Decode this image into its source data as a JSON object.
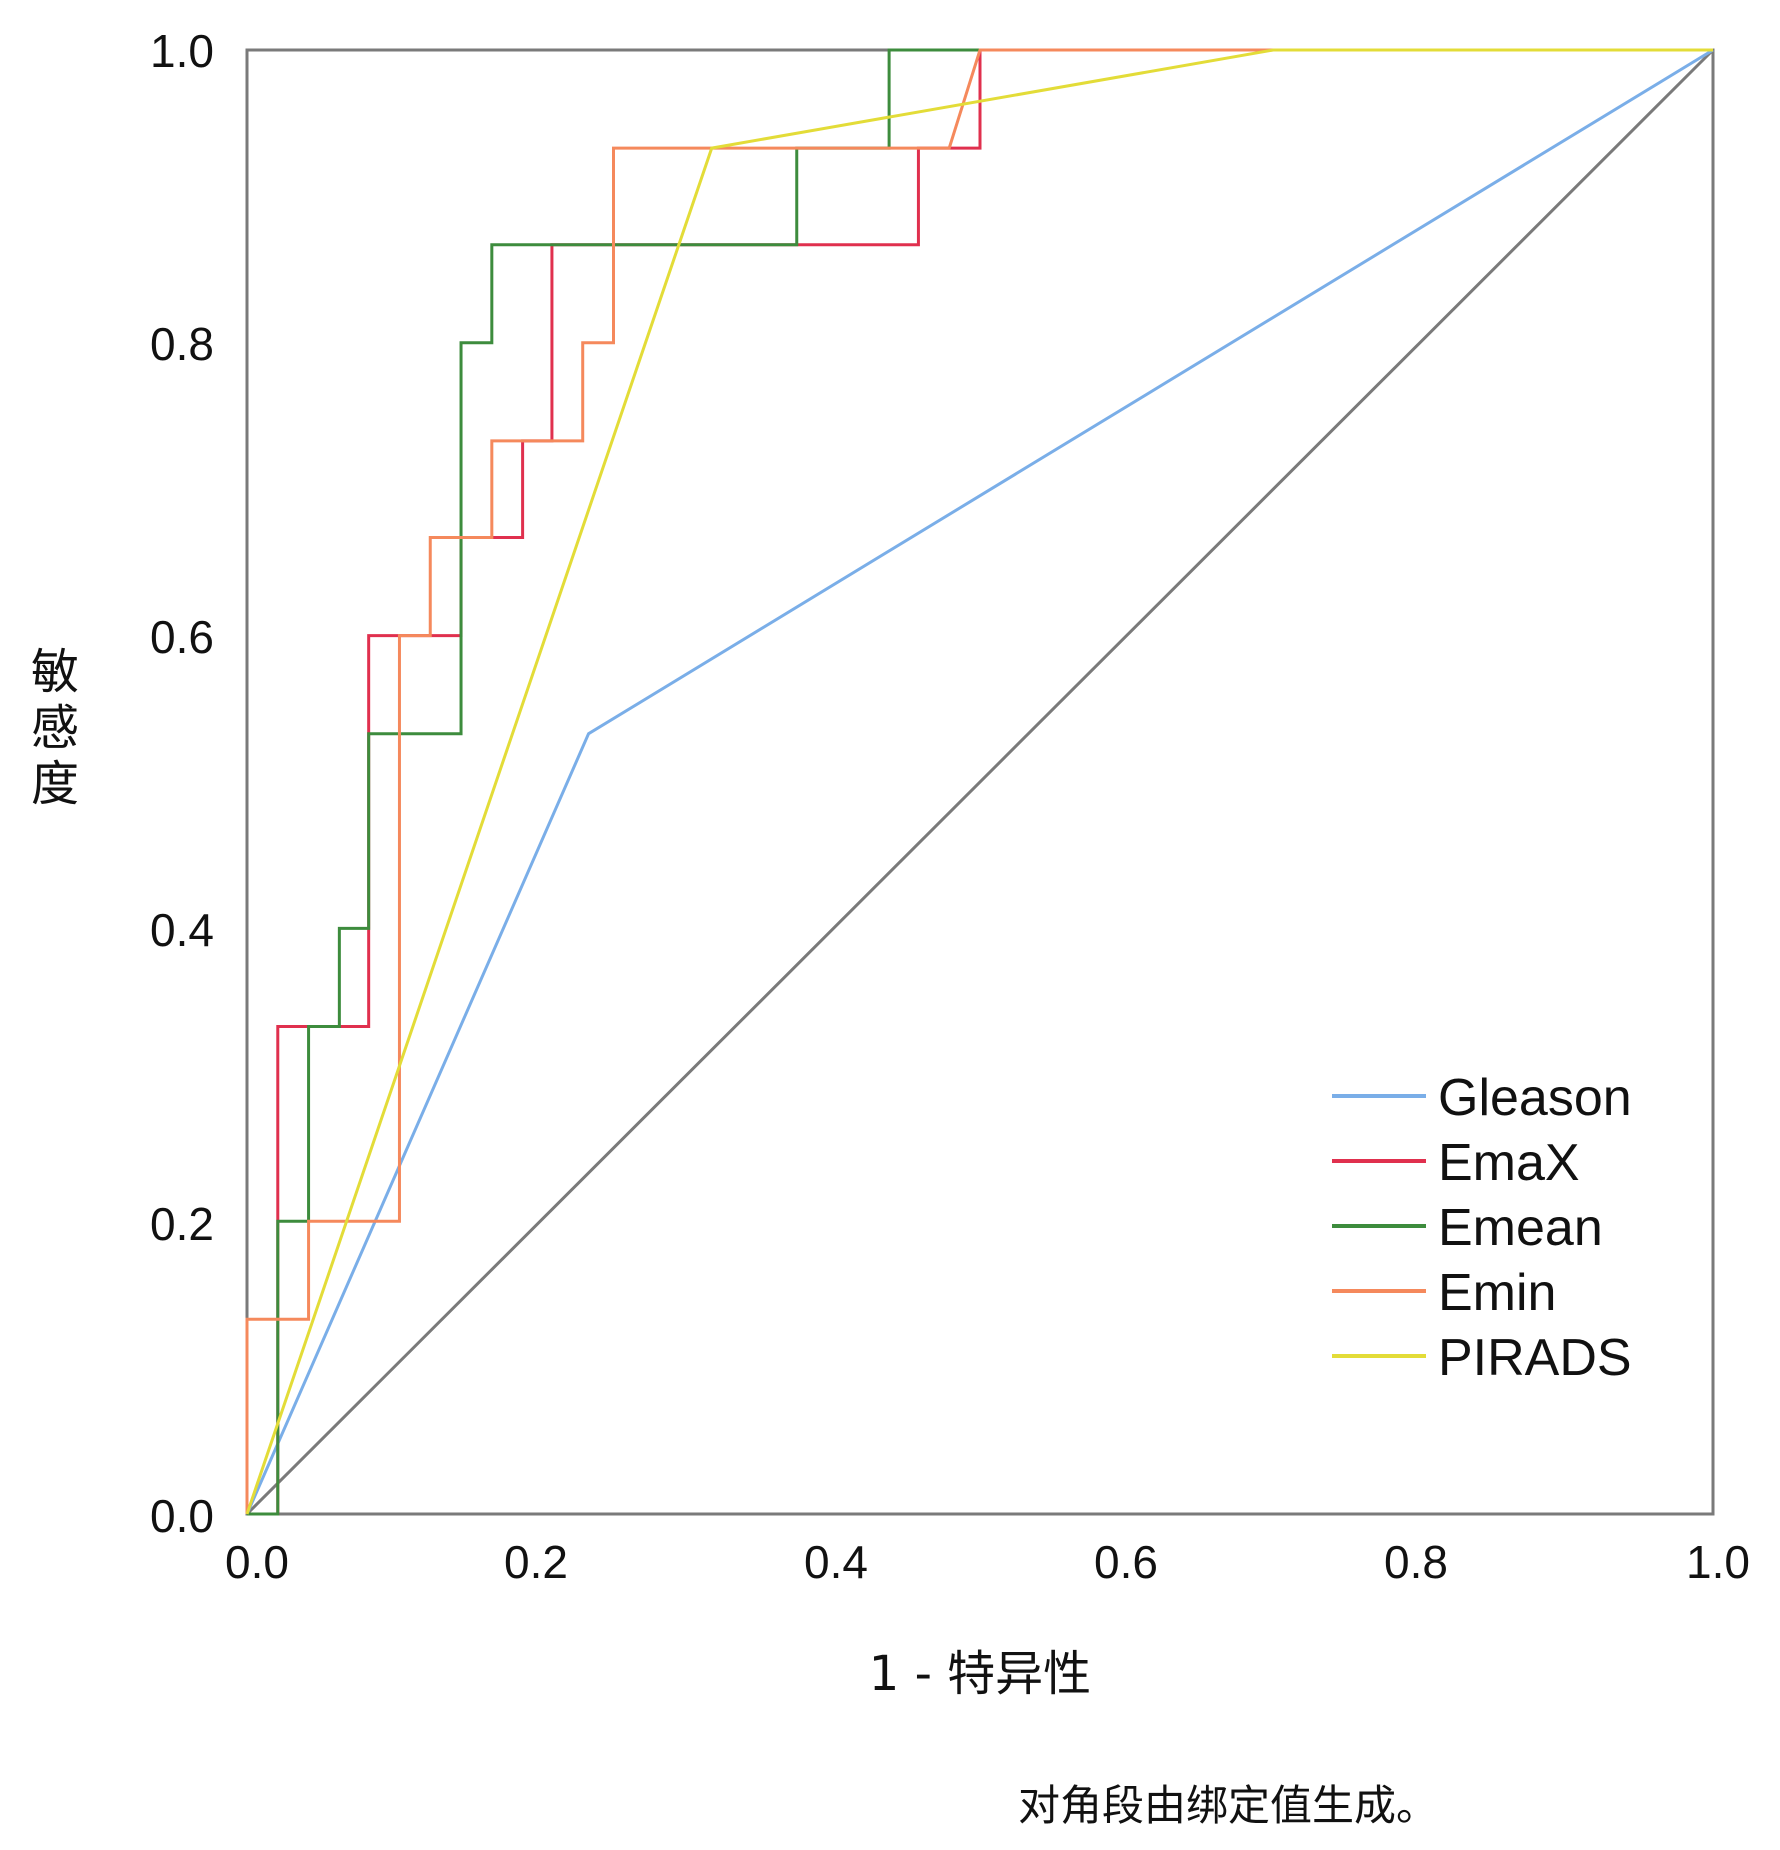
{
  "chart_data": {
    "type": "line",
    "title": "",
    "xlabel": "1 - 特异性",
    "ylabel": "敏感度",
    "xlim": [
      0,
      1
    ],
    "ylim": [
      0,
      1
    ],
    "x_ticks": [
      "0.0",
      "0.2",
      "0.4",
      "0.6",
      "0.8",
      "1.0"
    ],
    "y_ticks": [
      "0.0",
      "0.2",
      "0.4",
      "0.6",
      "0.8",
      "1.0"
    ],
    "grid": false,
    "legend_position": "bottom-right",
    "footnote": "对角段由绑定值生成。",
    "series": [
      {
        "name": "Gleason",
        "color": "#7aaee8",
        "points": [
          [
            0,
            0
          ],
          [
            0.233,
            0.533
          ],
          [
            1,
            1
          ]
        ]
      },
      {
        "name": "EmaX",
        "color": "#e0304e",
        "points": [
          [
            0,
            0
          ],
          [
            0.021,
            0
          ],
          [
            0.021,
            0.333
          ],
          [
            0.083,
            0.333
          ],
          [
            0.083,
            0.6
          ],
          [
            0.146,
            0.6
          ],
          [
            0.146,
            0.667
          ],
          [
            0.188,
            0.667
          ],
          [
            0.188,
            0.733
          ],
          [
            0.208,
            0.733
          ],
          [
            0.208,
            0.867
          ],
          [
            0.458,
            0.867
          ],
          [
            0.458,
            0.933
          ],
          [
            0.5,
            0.933
          ],
          [
            0.5,
            1
          ],
          [
            1,
            1
          ]
        ]
      },
      {
        "name": "Emean",
        "color": "#3d8c3d",
        "points": [
          [
            0,
            0
          ],
          [
            0.021,
            0
          ],
          [
            0.021,
            0.2
          ],
          [
            0.042,
            0.2
          ],
          [
            0.042,
            0.333
          ],
          [
            0.063,
            0.333
          ],
          [
            0.063,
            0.4
          ],
          [
            0.083,
            0.4
          ],
          [
            0.083,
            0.533
          ],
          [
            0.146,
            0.533
          ],
          [
            0.146,
            0.8
          ],
          [
            0.167,
            0.8
          ],
          [
            0.167,
            0.867
          ],
          [
            0.375,
            0.867
          ],
          [
            0.375,
            0.933
          ],
          [
            0.438,
            0.933
          ],
          [
            0.438,
            1
          ],
          [
            1,
            1
          ]
        ]
      },
      {
        "name": "Emin",
        "color": "#f5895c",
        "points": [
          [
            0,
            0
          ],
          [
            0,
            0.133
          ],
          [
            0.042,
            0.133
          ],
          [
            0.042,
            0.2
          ],
          [
            0.104,
            0.2
          ],
          [
            0.104,
            0.6
          ],
          [
            0.125,
            0.6
          ],
          [
            0.125,
            0.667
          ],
          [
            0.167,
            0.667
          ],
          [
            0.167,
            0.733
          ],
          [
            0.229,
            0.733
          ],
          [
            0.229,
            0.8
          ],
          [
            0.25,
            0.8
          ],
          [
            0.25,
            0.933
          ],
          [
            0.479,
            0.933
          ],
          [
            0.5,
            1
          ],
          [
            1,
            1
          ]
        ]
      },
      {
        "name": "PIRADS",
        "color": "#e3dc38",
        "points": [
          [
            0,
            0
          ],
          [
            0.317,
            0.933
          ],
          [
            0.7,
            1
          ],
          [
            1,
            1
          ]
        ]
      }
    ],
    "reference_line": {
      "color": "#7a7a7a",
      "points": [
        [
          0,
          0
        ],
        [
          1,
          1
        ]
      ]
    }
  }
}
